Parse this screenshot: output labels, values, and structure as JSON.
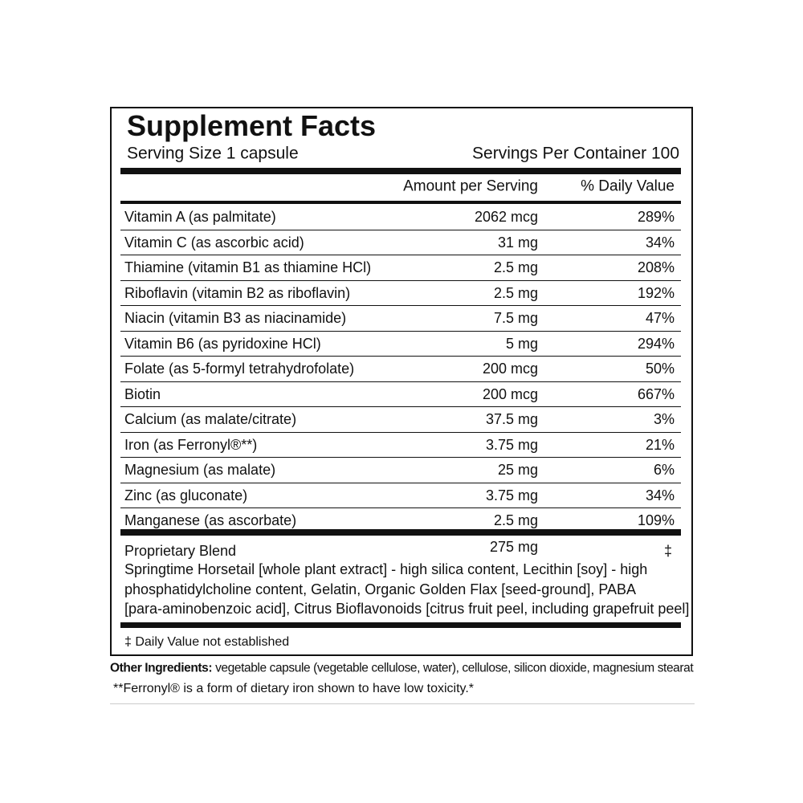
{
  "header": {
    "title": "Supplement Facts",
    "serving_size": "Serving Size 1 capsule",
    "servings_per_container": "Servings Per Container 100"
  },
  "table": {
    "columns": [
      "Amount per Serving",
      "% Daily Value"
    ],
    "rows": [
      [
        "Vitamin A (as palmitate)",
        "2062 mcg",
        "289%"
      ],
      [
        "Vitamin C (as ascorbic acid)",
        "31 mg",
        "34%"
      ],
      [
        "Thiamine (vitamin B1 as thiamine HCl)",
        "2.5 mg",
        "208%"
      ],
      [
        "Riboflavin (vitamin B2 as riboflavin)",
        "2.5 mg",
        "192%"
      ],
      [
        "Niacin (vitamin B3 as niacinamide)",
        "7.5 mg",
        "47%"
      ],
      [
        "Vitamin B6 (as pyridoxine HCl)",
        "5 mg",
        "294%"
      ],
      [
        "Folate (as 5-formyl tetrahydrofolate)",
        "200 mcg",
        "50%"
      ],
      [
        "Biotin",
        "200 mcg",
        "667%"
      ],
      [
        "Calcium (as malate/citrate)",
        "37.5 mg",
        "3%"
      ],
      [
        "Iron (as Ferronyl®**)",
        "3.75 mg",
        "21%"
      ],
      [
        "Magnesium (as malate)",
        "25 mg",
        "6%"
      ],
      [
        "Zinc (as gluconate)",
        "3.75 mg",
        "34%"
      ],
      [
        "Manganese (as ascorbate)",
        "2.5 mg",
        "109%"
      ]
    ],
    "blend": {
      "name": "Proprietary Blend",
      "amount": "275 mg",
      "daily_value": "‡",
      "description": [
        "Springtime Horsetail [whole plant extract] - high silica content, Lecithin [soy] - high",
        "phosphatidylcholine content, Gelatin, Organic Golden Flax [seed-ground], PABA",
        "[para-aminobenzoic acid], Citrus Bioflavonoids [citrus fruit peel, including grapefruit peel]"
      ]
    }
  },
  "footnote": "‡ Daily Value not established",
  "other_ingredients": {
    "label": "Other Ingredients:",
    "text": "vegetable capsule (vegetable cellulose, water), cellulose, silicon dioxide, magnesium stearat"
  },
  "ferronyl_note": "**Ferronyl® is a form of dietary iron shown to have low toxicity.*"
}
